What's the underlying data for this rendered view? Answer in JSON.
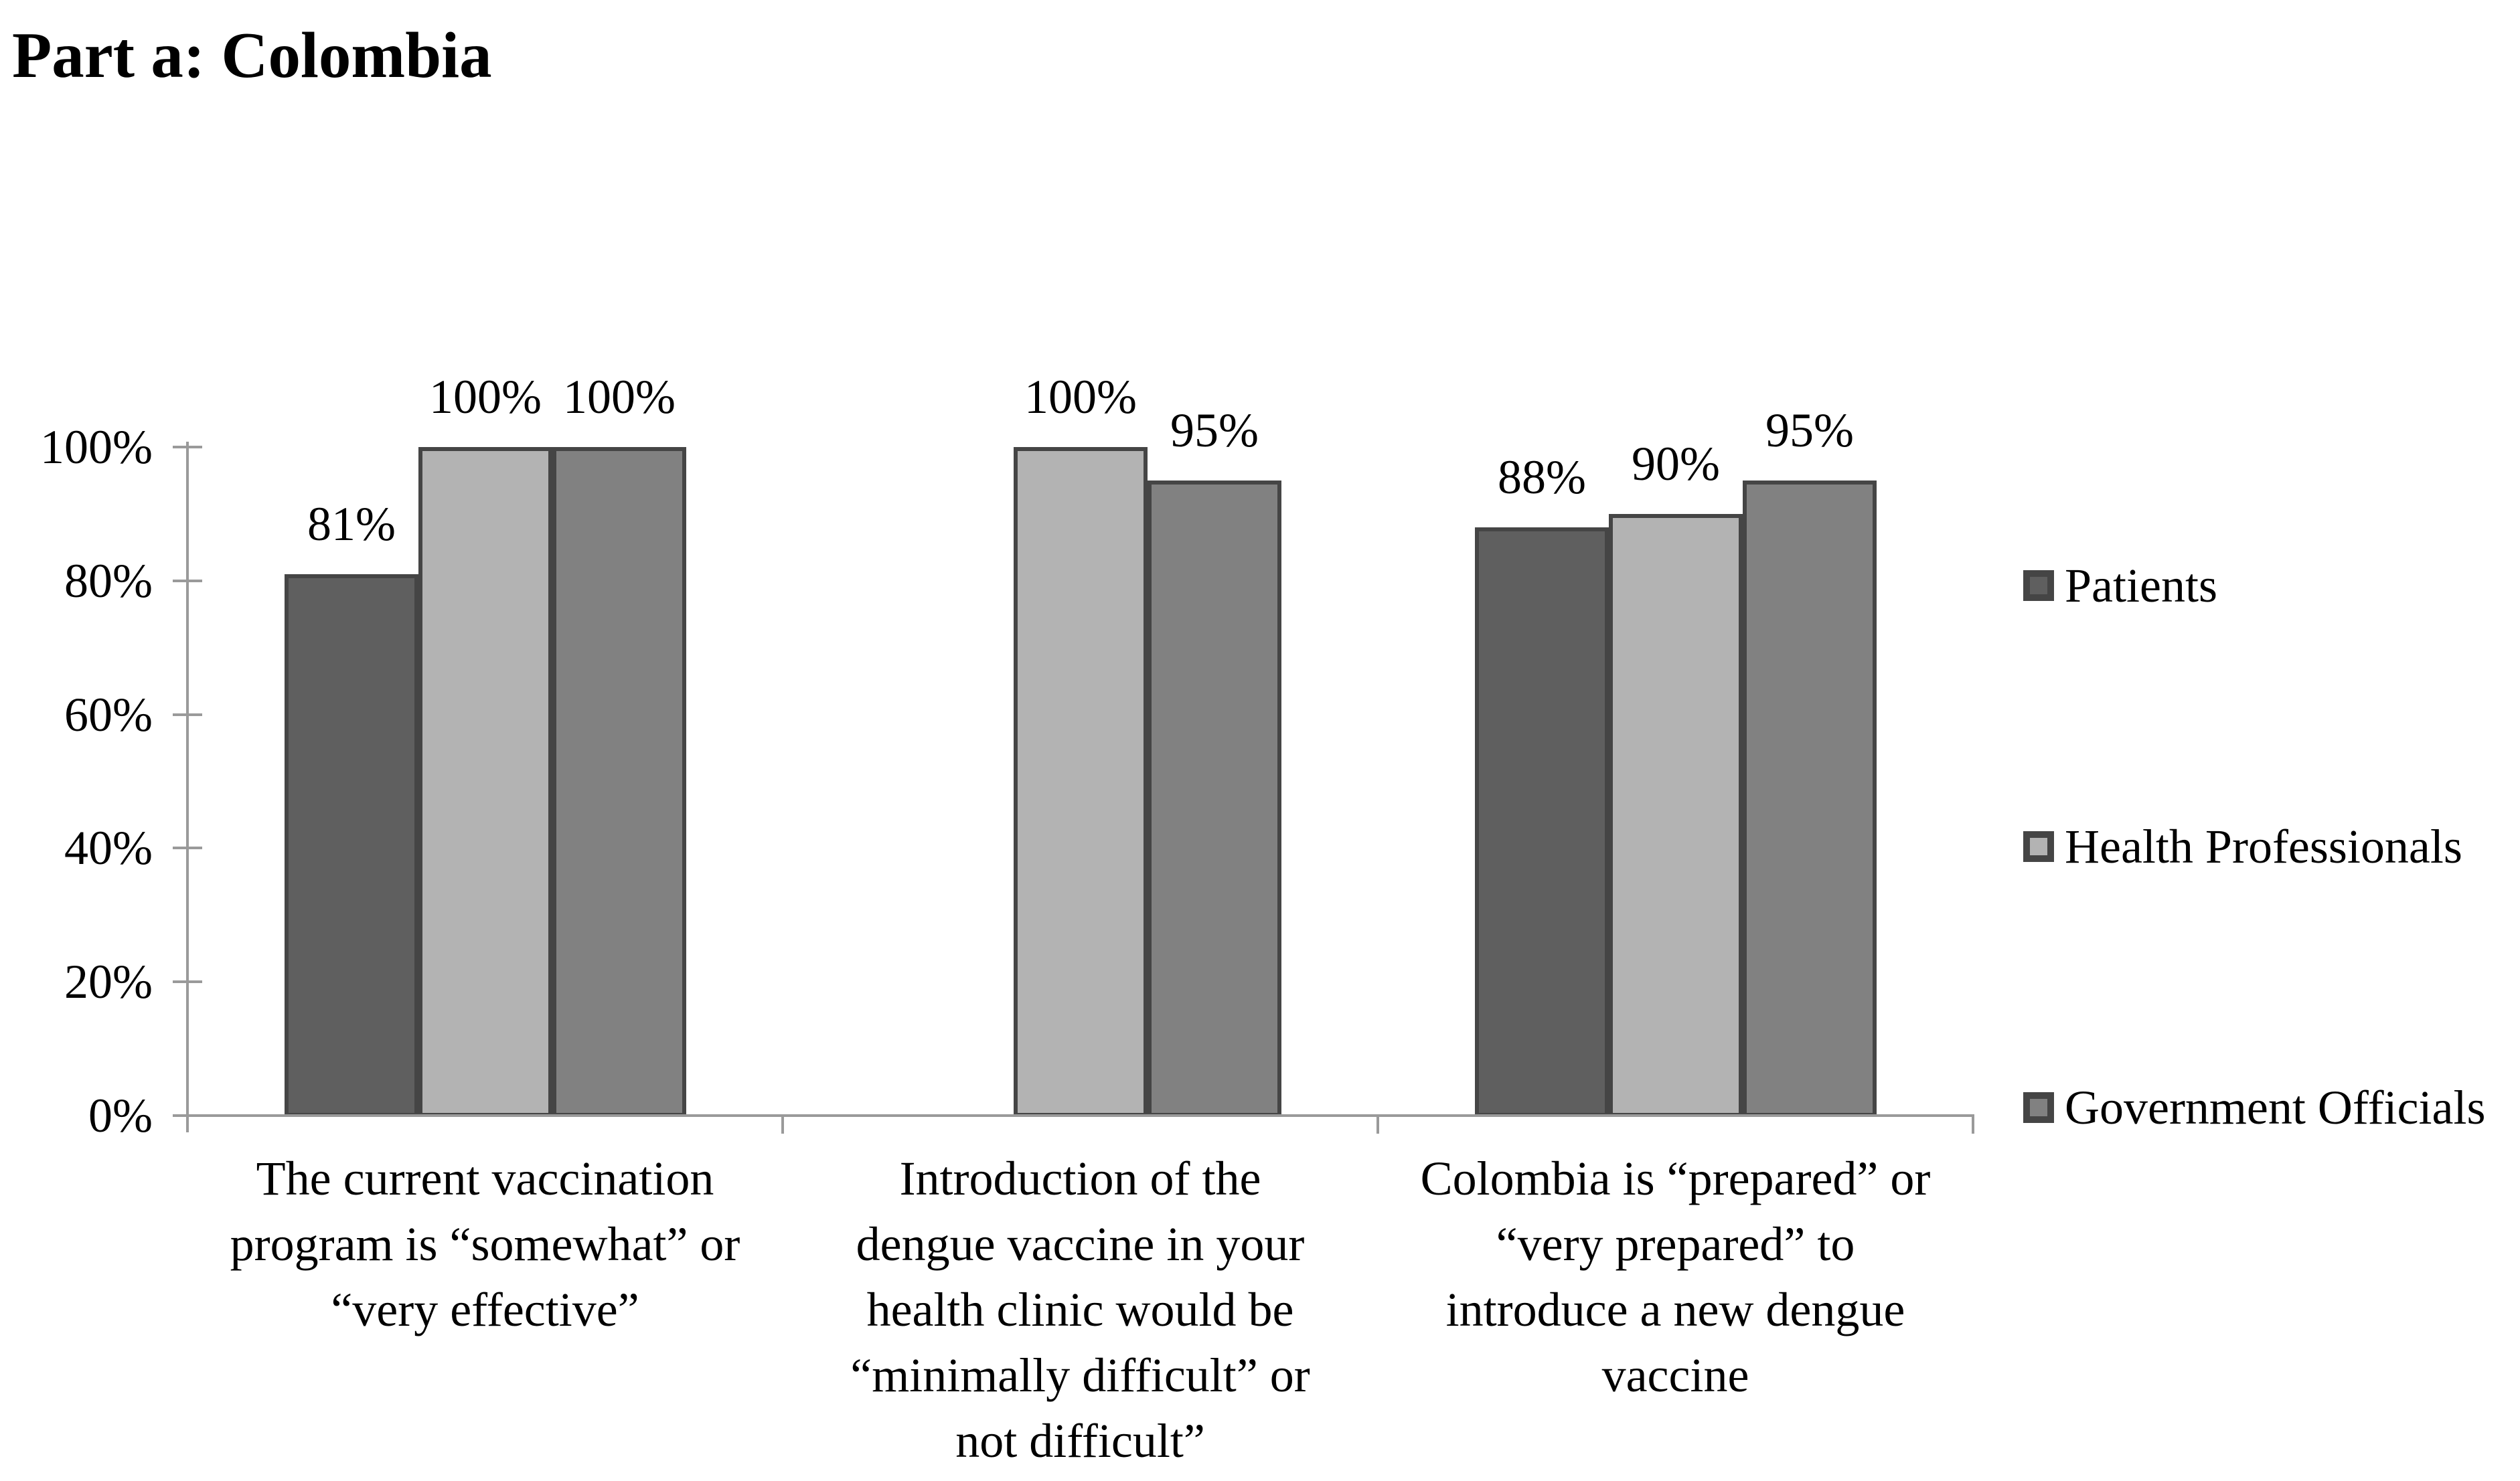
{
  "title": "Part a: Colombia",
  "accents": {
    "axis_color": "#9a9a9a",
    "bar_border_color": "#454545",
    "text_color": "#000000"
  },
  "chart_data": {
    "type": "bar",
    "title": "Part a: Colombia",
    "categories": [
      "The current vaccination\nprogram is “somewhat” or\n“very effective”",
      "Introduction of the\ndengue vaccine in your\nhealth clinic would be\n“minimally difficult” or\nnot difficult”",
      "Colombia is “prepared” or\n“very prepared” to\nintroduce a new dengue\nvaccine"
    ],
    "series": [
      {
        "name": "Patients",
        "color": "#5f5f5f",
        "values": [
          81,
          null,
          88
        ]
      },
      {
        "name": "Health Professionals",
        "color": "#b3b3b3",
        "values": [
          100,
          100,
          90
        ]
      },
      {
        "name": "Government Officials",
        "color": "#818181",
        "values": [
          100,
          95,
          95
        ]
      }
    ],
    "data_labels": [
      "81%",
      "100%",
      "100%",
      "100%",
      "95%",
      "88%",
      "90%",
      "95%"
    ],
    "xlabel": "",
    "ylabel": "",
    "ylim": [
      0,
      100
    ],
    "yticks": [
      "0%",
      "20%",
      "40%",
      "60%",
      "80%",
      "100%"
    ],
    "grid": false,
    "legend_position": "right"
  },
  "legend": {
    "items": [
      {
        "label": "Patients",
        "color": "#5f5f5f"
      },
      {
        "label": "Health Professionals",
        "color": "#b3b3b3"
      },
      {
        "label": "Government Officials",
        "color": "#818181"
      }
    ]
  }
}
